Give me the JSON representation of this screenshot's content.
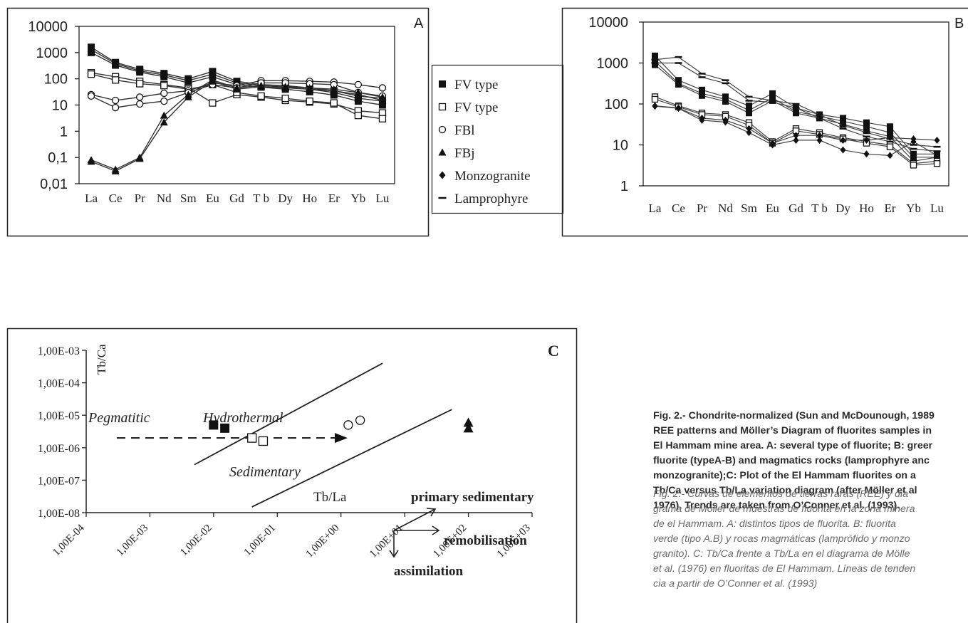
{
  "figure": {
    "caption_en": [
      "Fig. 2.- Chondrite-normalized (Sun and McDounough, 1989",
      "REE patterns and Möller’s Diagram of fluorites samples in",
      "El Hammam mine area. A: several type of fluorite; B: greer",
      "fluorite (typeA-B) and magmatics rocks (lamprophyre anc",
      "monzogranite);C: Plot of the El Hammam fluorites on a",
      "Tb/Ca versus Tb/La variation diagram (after Möller et al",
      "1976). Trends are taken from O’Conner et al. (1993)."
    ],
    "caption_es": [
      "Fig. 2.- Curvas de elementos de tierras raras (REE) y dia",
      "grama de Möller de muestras de fluorita en la zona minera",
      "de el Hammam. A: distintos tipos de fluorita. B: fluorita",
      "verde (tipo A.B) y rocas magmáticas (lamprófido y monzo",
      "granito). C: Tb/Ca frente a Tb/La en el diagrama de Mölle",
      "et al. (1976) en fluoritas de El Hammam. Líneas de tenden",
      "cia a partir de O’Conner et al. (1993)"
    ]
  },
  "chart_data": [
    {
      "panel": "A",
      "type": "line",
      "y_scale": "log",
      "ylim": [
        0.01,
        10000
      ],
      "y_ticks": [
        "10000",
        "1000",
        "100",
        "10",
        "1",
        "0,1",
        "0,01"
      ],
      "categories": [
        "La",
        "Ce",
        "Pr",
        "Nd",
        "Sm",
        "Eu",
        "Gd",
        "Tb",
        "Dy",
        "Ho",
        "Er",
        "Yb",
        "Lu"
      ],
      "category_labels": [
        "La",
        "Ce",
        "Pr",
        "Nd",
        "Sm",
        "Eu",
        "Gd",
        "T b",
        "Dy",
        "Ho",
        "Er",
        "Yb",
        "Lu"
      ],
      "legend": [
        {
          "marker": "square-filled",
          "label": "FV type"
        },
        {
          "marker": "square-open",
          "label": "FV type"
        },
        {
          "marker": "circle-open",
          "label": "FBl"
        },
        {
          "marker": "triangle-filled",
          "label": "FBj"
        },
        {
          "marker": "diamond-filled",
          "label": "Monzogranite"
        },
        {
          "marker": "dash",
          "label": "Lamprophyre"
        }
      ],
      "legend_position": "right",
      "series": [
        {
          "marker": "square-filled",
          "values": [
            1600,
            420,
            230,
            160,
            100,
            190,
            80,
            60,
            55,
            45,
            35,
            22,
            18
          ]
        },
        {
          "marker": "square-filled",
          "values": [
            1300,
            380,
            200,
            140,
            85,
            150,
            70,
            55,
            48,
            40,
            30,
            18,
            14
          ]
        },
        {
          "marker": "square-filled",
          "values": [
            1000,
            330,
            180,
            120,
            70,
            120,
            60,
            48,
            40,
            32,
            24,
            14,
            10
          ]
        },
        {
          "marker": "square-open",
          "values": [
            170,
            120,
            80,
            60,
            45,
            12,
            25,
            20,
            15,
            13,
            11,
            6,
            5
          ]
        },
        {
          "marker": "square-open",
          "values": [
            150,
            90,
            65,
            55,
            40,
            60,
            30,
            22,
            18,
            14,
            12,
            4,
            3
          ]
        },
        {
          "marker": "circle-open",
          "values": [
            25,
            15,
            20,
            28,
            35,
            70,
            55,
            85,
            85,
            80,
            75,
            60,
            45
          ]
        },
        {
          "marker": "circle-open",
          "values": [
            22,
            8,
            11,
            14,
            30,
            60,
            45,
            70,
            70,
            65,
            60,
            30,
            22
          ]
        },
        {
          "marker": "triangle-filled",
          "values": [
            0.08,
            0.035,
            0.1,
            4,
            25,
            90,
            45,
            55,
            50,
            45,
            40,
            30,
            20
          ]
        },
        {
          "marker": "triangle-filled",
          "values": [
            0.07,
            0.03,
            0.09,
            2.2,
            20,
            80,
            40,
            50,
            45,
            40,
            35,
            25,
            15
          ]
        }
      ]
    },
    {
      "panel": "B",
      "type": "line",
      "y_scale": "log",
      "ylim": [
        1,
        10000
      ],
      "y_ticks": [
        "10000",
        "1000",
        "100",
        "10",
        "1"
      ],
      "categories": [
        "La",
        "Ce",
        "Pr",
        "Nd",
        "Sm",
        "Eu",
        "Gd",
        "Tb",
        "Dy",
        "Ho",
        "Er",
        "Yb",
        "Lu"
      ],
      "category_labels": [
        "La",
        "Ce",
        "Pr",
        "Nd",
        "Sm",
        "Eu",
        "Gd",
        "T b",
        "Dy",
        "Ho",
        "Er",
        "Yb",
        "Lu"
      ],
      "series": [
        {
          "marker": "square-filled",
          "values": [
            1500,
            380,
            220,
            150,
            90,
            180,
            80,
            55,
            45,
            35,
            28,
            6,
            6
          ]
        },
        {
          "marker": "square-filled",
          "values": [
            1100,
            320,
            180,
            130,
            70,
            140,
            65,
            50,
            38,
            28,
            20,
            5,
            5
          ]
        },
        {
          "marker": "square-filled",
          "values": [
            900,
            300,
            160,
            115,
            60,
            120,
            60,
            45,
            32,
            22,
            16,
            4,
            5
          ]
        },
        {
          "marker": "dash",
          "values": [
            1200,
            1400,
            550,
            380,
            150,
            120,
            100,
            55,
            30,
            20,
            14,
            10,
            9
          ]
        },
        {
          "marker": "dash",
          "values": [
            1000,
            1000,
            450,
            320,
            120,
            110,
            80,
            45,
            25,
            16,
            12,
            8,
            7
          ]
        },
        {
          "marker": "square-open",
          "values": [
            150,
            90,
            60,
            55,
            35,
            12,
            25,
            20,
            15,
            12,
            10,
            3.5,
            4
          ]
        },
        {
          "marker": "square-open",
          "values": [
            130,
            85,
            55,
            50,
            30,
            11,
            22,
            18,
            14,
            11,
            9,
            3.2,
            3.5
          ]
        },
        {
          "marker": "diamond-filled",
          "values": [
            90,
            80,
            45,
            40,
            25,
            11,
            17,
            17,
            13,
            13,
            15,
            14,
            13
          ]
        },
        {
          "marker": "diamond-filled",
          "values": [
            88,
            78,
            40,
            36,
            20,
            10,
            13,
            13,
            7.5,
            6,
            5.5,
            12,
            5.5
          ]
        }
      ]
    },
    {
      "panel": "C",
      "type": "scatter",
      "x_scale": "log",
      "y_scale": "log",
      "xlabel": "Tb/La",
      "ylabel": "Tb/Ca",
      "x_ticks": [
        "1,00E-04",
        "1,00E-03",
        "1,00E-02",
        "1,00E-01",
        "1,00E+00",
        "1,00E+01",
        "1,00E+02",
        "1,00E+03"
      ],
      "y_ticks": [
        "1,00E-03",
        "1,00E-04",
        "1,00E-05",
        "1,00E-06",
        "1,00E-07",
        "1,00E-08"
      ],
      "xlim": [
        0.0001,
        1000
      ],
      "ylim": [
        1e-08,
        0.001
      ],
      "regions": [
        "Pegmatitic",
        "Hydrothermal",
        "Sedimentary"
      ],
      "points": [
        {
          "marker": "square-filled",
          "x": 0.01,
          "y": 5e-06
        },
        {
          "marker": "square-filled",
          "x": 0.015,
          "y": 4e-06
        },
        {
          "marker": "square-open",
          "x": 0.04,
          "y": 2e-06
        },
        {
          "marker": "square-open",
          "x": 0.06,
          "y": 1.6e-06
        },
        {
          "marker": "circle-open",
          "x": 1.3,
          "y": 5e-06
        },
        {
          "marker": "circle-open",
          "x": 2,
          "y": 7e-06
        },
        {
          "marker": "triangle-filled",
          "x": 100,
          "y": 6e-06
        },
        {
          "marker": "triangle-filled",
          "x": 100,
          "y": 4e-06
        }
      ],
      "boundary_lines": [
        {
          "x": [
            0.005,
            4.5
          ],
          "y": [
            3e-07,
            0.0004
          ]
        },
        {
          "x": [
            0.04,
            55
          ],
          "y": [
            1.5e-08,
            1.5e-05
          ]
        }
      ],
      "dashed_line_y": 2e-06,
      "trend_labels": [
        "primary sedimentary",
        "remobilisation",
        "assimilation"
      ]
    }
  ]
}
